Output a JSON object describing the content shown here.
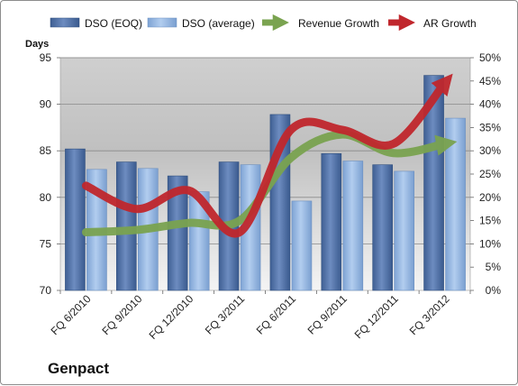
{
  "chart_data": {
    "type": "bar",
    "company": "Genpact",
    "ylabel": "Days",
    "ylim": [
      70,
      95
    ],
    "y_ticks": [
      70,
      75,
      80,
      85,
      90,
      95
    ],
    "y2lim": [
      0,
      50
    ],
    "y2_ticks": [
      "0%",
      "5%",
      "10%",
      "15%",
      "20%",
      "25%",
      "30%",
      "35%",
      "40%",
      "45%",
      "50%"
    ],
    "categories": [
      "FQ 6/2010",
      "FQ 9/2010",
      "FQ 12/2010",
      "FQ 3/2011",
      "FQ 6/2011",
      "FQ 9/2011",
      "FQ 12/2011",
      "FQ 3/2012"
    ],
    "series": [
      {
        "name": "DSO (EOQ)",
        "type": "bar",
        "axis": "left",
        "color": "#4f6fa3",
        "values": [
          85.2,
          83.8,
          82.3,
          83.8,
          88.9,
          84.7,
          83.5,
          93.1
        ]
      },
      {
        "name": "DSO (average)",
        "type": "bar",
        "axis": "left",
        "color": "#8eb2e0",
        "values": [
          83.0,
          83.1,
          80.6,
          83.5,
          79.6,
          83.9,
          82.8,
          88.5
        ]
      },
      {
        "name": "Revenue Growth",
        "type": "line",
        "axis": "right",
        "color": "#7aa350",
        "unit": "%",
        "values": [
          12.5,
          13.0,
          14.5,
          15.0,
          28.5,
          33.5,
          29.5,
          31.5
        ]
      },
      {
        "name": "AR Growth",
        "type": "line",
        "axis": "right",
        "color": "#c0272d",
        "unit": "%",
        "values": [
          22.5,
          17.5,
          21.5,
          12.5,
          34.5,
          34.5,
          31.5,
          44.5
        ]
      }
    ],
    "grid": true,
    "legend": "top"
  }
}
